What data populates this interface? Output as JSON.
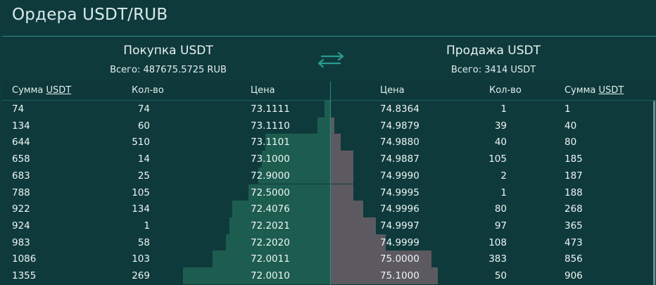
{
  "title": "Ордера USDT/RUB",
  "buy": {
    "heading": "Покупка USDT",
    "total": "Всего: 487675.5725 RUB",
    "columns": {
      "sum_prefix": "Сумма ",
      "sum_link": "USDT",
      "qty": "Кол-во",
      "price": "Цена"
    },
    "rows": [
      {
        "sum": "74",
        "qty": "74",
        "price": "73.1111",
        "depth": 0.02
      },
      {
        "sum": "134",
        "qty": "60",
        "price": "73.1110",
        "depth": 0.04
      },
      {
        "sum": "644",
        "qty": "510",
        "price": "73.1101",
        "depth": 0.2
      },
      {
        "sum": "658",
        "qty": "14",
        "price": "73.1000",
        "depth": 0.21
      },
      {
        "sum": "683",
        "qty": "25",
        "price": "72.9000",
        "depth": 0.22
      },
      {
        "sum": "788",
        "qty": "105",
        "price": "72.5000",
        "depth": 0.25
      },
      {
        "sum": "922",
        "qty": "134",
        "price": "72.4076",
        "depth": 0.3
      },
      {
        "sum": "924",
        "qty": "1",
        "price": "72.2021",
        "depth": 0.31
      },
      {
        "sum": "983",
        "qty": "58",
        "price": "72.2020",
        "depth": 0.32
      },
      {
        "sum": "1086",
        "qty": "103",
        "price": "72.0011",
        "depth": 0.36
      },
      {
        "sum": "1355",
        "qty": "269",
        "price": "72.0010",
        "depth": 0.45
      }
    ]
  },
  "sell": {
    "heading": "Продажа USDT",
    "total": "Всего: 3414 USDT",
    "columns": {
      "price": "Цена",
      "qty": "Кол-во",
      "sum_prefix": "Сумма ",
      "sum_link": "USDT"
    },
    "rows": [
      {
        "price": "74.8364",
        "qty": "1",
        "sum": "1",
        "depth": 0.0
      },
      {
        "price": "74.9879",
        "qty": "39",
        "sum": "40",
        "depth": 0.01
      },
      {
        "price": "74.9880",
        "qty": "40",
        "sum": "80",
        "depth": 0.03
      },
      {
        "price": "74.9887",
        "qty": "105",
        "sum": "185",
        "depth": 0.07
      },
      {
        "price": "74.9990",
        "qty": "2",
        "sum": "187",
        "depth": 0.07
      },
      {
        "price": "74.9995",
        "qty": "1",
        "sum": "188",
        "depth": 0.07
      },
      {
        "price": "74.9996",
        "qty": "80",
        "sum": "268",
        "depth": 0.1
      },
      {
        "price": "74.9997",
        "qty": "97",
        "sum": "365",
        "depth": 0.14
      },
      {
        "price": "74.9999",
        "qty": "108",
        "sum": "473",
        "depth": 0.17
      },
      {
        "price": "75.0000",
        "qty": "383",
        "sum": "856",
        "depth": 0.31
      },
      {
        "price": "75.1000",
        "qty": "50",
        "sum": "906",
        "depth": 0.33
      }
    ]
  },
  "colors": {
    "background": "#0f3a3c",
    "accent": "#2b8f86",
    "buy_bar": "#1d5d50",
    "sell_bar": "#5c5a60"
  },
  "icons": {
    "swap": "swap-arrows-icon"
  }
}
